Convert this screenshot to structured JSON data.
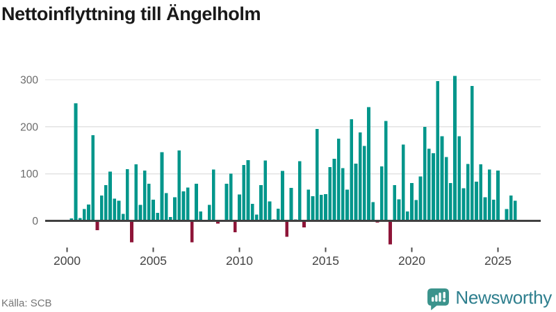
{
  "header": {
    "title": "Nettoinflyttning till Ängelholm"
  },
  "chart_data": {
    "type": "bar",
    "title": "Nettoinflyttning till Ängelholm",
    "frequency": "quarterly",
    "first_period": "2000 Q1",
    "last_period": "2026 Q1",
    "values": [
      2,
      5,
      250,
      6,
      25,
      35,
      182,
      -20,
      54,
      76,
      105,
      47,
      43,
      15,
      110,
      -46,
      120,
      34,
      107,
      79,
      45,
      17,
      146,
      59,
      8,
      50,
      150,
      63,
      71,
      -46,
      79,
      20,
      1,
      34,
      109,
      -6,
      1,
      79,
      100,
      -24,
      56,
      119,
      129,
      36,
      13,
      76,
      128,
      41,
      3,
      26,
      106,
      -34,
      70,
      3,
      127,
      -14,
      66,
      52,
      195,
      55,
      57,
      114,
      132,
      175,
      112,
      66,
      216,
      122,
      188,
      159,
      242,
      40,
      -4,
      116,
      212,
      -50,
      76,
      46,
      162,
      20,
      80,
      44,
      94,
      200,
      153,
      144,
      297,
      180,
      136,
      80,
      308,
      180,
      69,
      121,
      287,
      83,
      120,
      50,
      109,
      45,
      107,
      1,
      25,
      54,
      43
    ],
    "start_year": 2000,
    "x_tick_labels": [
      "2000",
      "2005",
      "2010",
      "2015",
      "2020",
      "2025"
    ],
    "y_tick_labels": [
      "0",
      "100",
      "200",
      "300"
    ],
    "y_ticks": [
      0,
      100,
      200,
      300
    ],
    "ylim": [
      -60,
      320
    ],
    "grid": "horizontal",
    "legend": "none",
    "positive_color": "#00968b",
    "negative_color": "#8e1538",
    "gridline_color": "#e3e3e3",
    "baseline_color": "#404040",
    "y_label_color": "#6b6b6b",
    "x_label_color": "#444444"
  },
  "footer": {
    "source": "Källa: SCB",
    "brand": "Newsworthy"
  }
}
